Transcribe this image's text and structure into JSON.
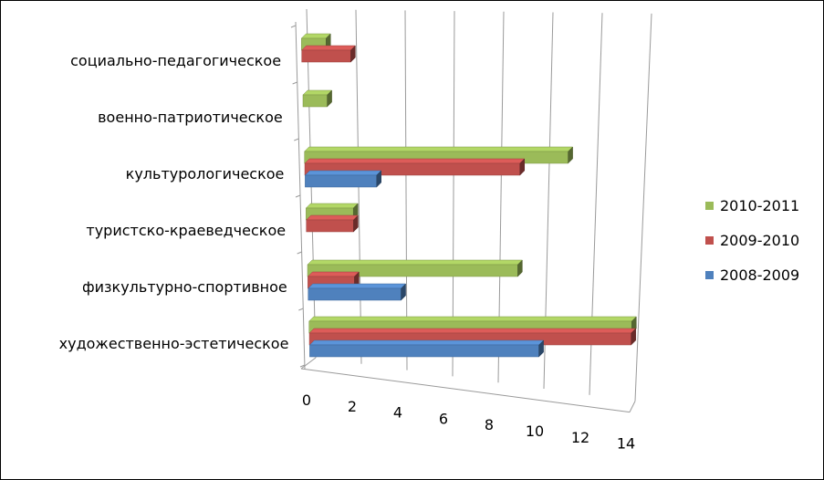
{
  "chart_data": {
    "type": "bar",
    "orientation": "horizontal",
    "style": "3d-clustered",
    "categories": [
      "социально-педагогическое",
      "военно-патриотическое",
      "культурологическое",
      "туристско-краеведческое",
      "физкультурно-спортивное",
      "художественно-эстетическое"
    ],
    "series": [
      {
        "name": "2010-2011",
        "color": "#9BBB59",
        "values": [
          1,
          1,
          11,
          2,
          9,
          14
        ]
      },
      {
        "name": "2009-2010",
        "color": "#C0504D",
        "values": [
          2,
          0,
          9,
          2,
          2,
          14
        ]
      },
      {
        "name": "2008-2009",
        "color": "#4F81BD",
        "values": [
          0,
          0,
          3,
          0,
          4,
          10
        ]
      }
    ],
    "x_ticks": [
      "0",
      "2",
      "4",
      "6",
      "8",
      "10",
      "12",
      "14"
    ],
    "xlim": [
      0,
      14
    ],
    "grid": true,
    "legend_position": "right",
    "title": "",
    "xlabel": "",
    "ylabel": ""
  }
}
